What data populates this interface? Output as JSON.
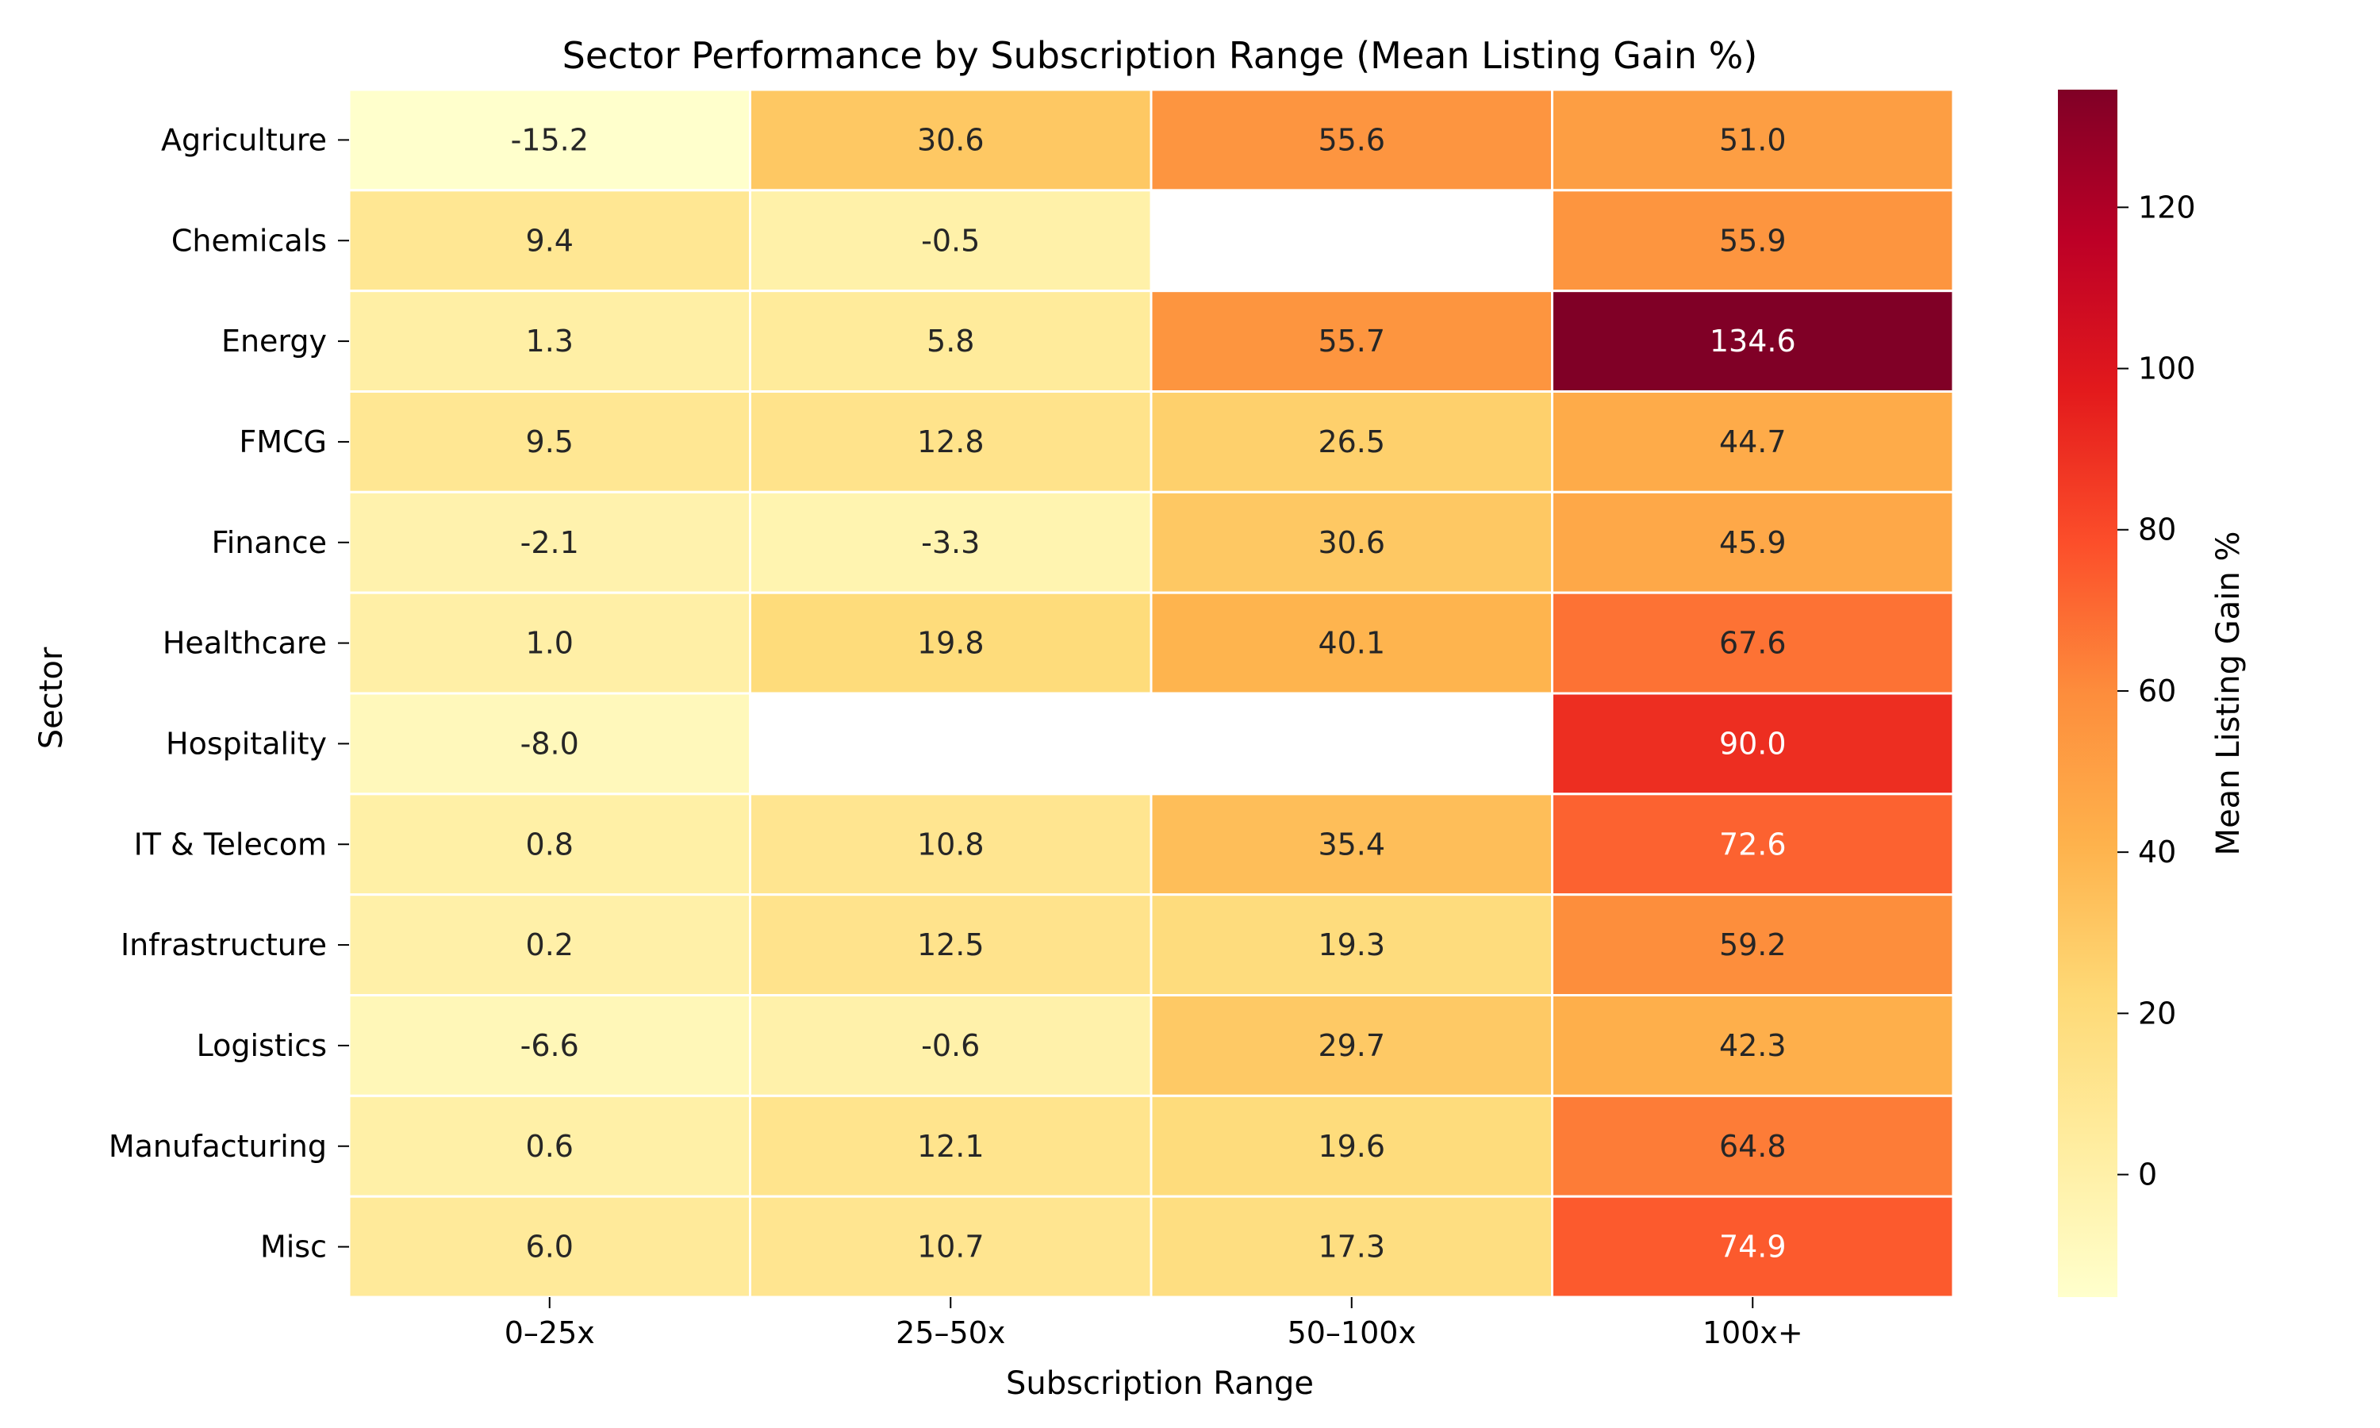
{
  "chart_data": {
    "type": "heatmap",
    "title": "Sector Performance by Subscription Range (Mean Listing Gain %)",
    "xlabel": "Subscription Range",
    "ylabel": "Sector",
    "colorbar_label": "Mean Listing Gain %",
    "colormap": "YlOrRd",
    "color_range": [
      -15.2,
      134.6
    ],
    "colorbar_ticks": [
      "0",
      "20",
      "40",
      "60",
      "80",
      "100",
      "120"
    ],
    "x_categories": [
      "0–25x",
      "25–50x",
      "50–100x",
      "100x+"
    ],
    "y_categories": [
      "Agriculture",
      "Chemicals",
      "Energy",
      "FMCG",
      "Finance",
      "Healthcare",
      "Hospitality",
      "IT & Telecom",
      "Infrastructure",
      "Logistics",
      "Manufacturing",
      "Misc"
    ],
    "values": [
      [
        -15.2,
        30.6,
        55.6,
        51.0
      ],
      [
        9.4,
        -0.5,
        null,
        55.9
      ],
      [
        1.3,
        5.8,
        55.7,
        134.6
      ],
      [
        9.5,
        12.8,
        26.5,
        44.7
      ],
      [
        -2.1,
        -3.3,
        30.6,
        45.9
      ],
      [
        1.0,
        19.8,
        40.1,
        67.6
      ],
      [
        -8.0,
        null,
        null,
        90.0
      ],
      [
        0.8,
        10.8,
        35.4,
        72.6
      ],
      [
        0.2,
        12.5,
        19.3,
        59.2
      ],
      [
        -6.6,
        -0.6,
        29.7,
        42.3
      ],
      [
        0.6,
        12.1,
        19.6,
        64.8
      ],
      [
        6.0,
        10.7,
        17.3,
        74.9
      ]
    ],
    "value_labels": [
      [
        "-15.2",
        "30.6",
        "55.6",
        "51.0"
      ],
      [
        "9.4",
        "-0.5",
        "",
        "55.9"
      ],
      [
        "1.3",
        "5.8",
        "55.7",
        "134.6"
      ],
      [
        "9.5",
        "12.8",
        "26.5",
        "44.7"
      ],
      [
        "-2.1",
        "-3.3",
        "30.6",
        "45.9"
      ],
      [
        "1.0",
        "19.8",
        "40.1",
        "67.6"
      ],
      [
        "-8.0",
        "",
        "",
        "90.0"
      ],
      [
        "0.8",
        "10.8",
        "35.4",
        "72.6"
      ],
      [
        "0.2",
        "12.5",
        "19.3",
        "59.2"
      ],
      [
        "-6.6",
        "-0.6",
        "29.7",
        "42.3"
      ],
      [
        "0.6",
        "12.1",
        "19.6",
        "64.8"
      ],
      [
        "6.0",
        "10.7",
        "17.3",
        "74.9"
      ]
    ]
  }
}
